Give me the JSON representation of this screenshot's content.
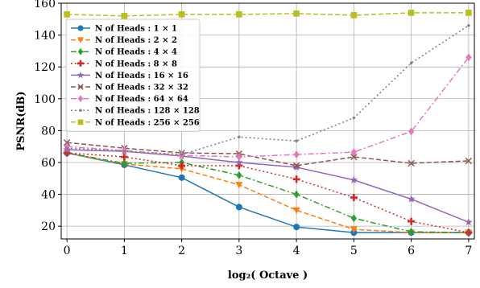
{
  "chart_data": {
    "type": "line",
    "xlabel": "log₂( Octave )",
    "ylabel": "PSNR(dB)",
    "x": [
      0,
      1,
      2,
      3,
      4,
      5,
      6,
      7
    ],
    "xlim": [
      -0.1,
      7.1
    ],
    "ylim": [
      12,
      160
    ],
    "yticks": [
      20,
      40,
      60,
      80,
      100,
      120,
      140,
      160
    ],
    "grid": true,
    "legend_position": "upper-left",
    "series": [
      {
        "name": "N of Heads : 1 × 1",
        "color": "#1f77b4",
        "marker": "circle",
        "dash": "solid",
        "values": [
          66,
          58.5,
          50.5,
          32,
          19.5,
          16,
          16,
          16
        ]
      },
      {
        "name": "N of Heads : 2 × 2",
        "color": "#ff7f0e",
        "marker": "triangle-down",
        "dash": "dashed",
        "values": [
          66,
          59,
          56,
          46,
          30,
          18,
          16,
          16
        ]
      },
      {
        "name": "N of Heads : 4 × 4",
        "color": "#2ca02c",
        "marker": "diamond",
        "dash": "dashdot",
        "values": [
          66,
          59.5,
          60,
          52,
          40,
          25,
          16.5,
          16
        ]
      },
      {
        "name": "N of Heads : 8 × 8",
        "color": "#d62728",
        "marker": "plus",
        "dash": "dotted",
        "values": [
          66,
          63.5,
          58,
          58,
          49.5,
          38,
          23,
          16
        ]
      },
      {
        "name": "N of Heads : 16 × 16",
        "color": "#9467bd",
        "marker": "star",
        "dash": "solid",
        "values": [
          68,
          67,
          64,
          60,
          57,
          49,
          37,
          22.5
        ]
      },
      {
        "name": "N of Heads : 32 × 32",
        "color": "#8c564b",
        "marker": "x",
        "dash": "dashed",
        "values": [
          72.5,
          69,
          66,
          65.5,
          58,
          63.5,
          59.5,
          61
        ]
      },
      {
        "name": "N of Heads : 64 × 64",
        "color": "#e377c2",
        "marker": "diamond",
        "dash": "dashdot",
        "values": [
          70,
          67.5,
          64.5,
          63.5,
          65,
          66.5,
          79.5,
          126
        ]
      },
      {
        "name": "N of Heads : 128 × 128",
        "color": "#7f7f7f",
        "marker": "dot",
        "dash": "dotted",
        "values": [
          69,
          67,
          65,
          76,
          73.5,
          88,
          122.5,
          146
        ]
      },
      {
        "name": "N of Heads : 256 × 256",
        "color": "#bcbd22",
        "marker": "square",
        "dash": "dashed",
        "values": [
          153,
          152,
          153,
          153,
          153.5,
          152.5,
          154,
          154
        ]
      }
    ]
  }
}
